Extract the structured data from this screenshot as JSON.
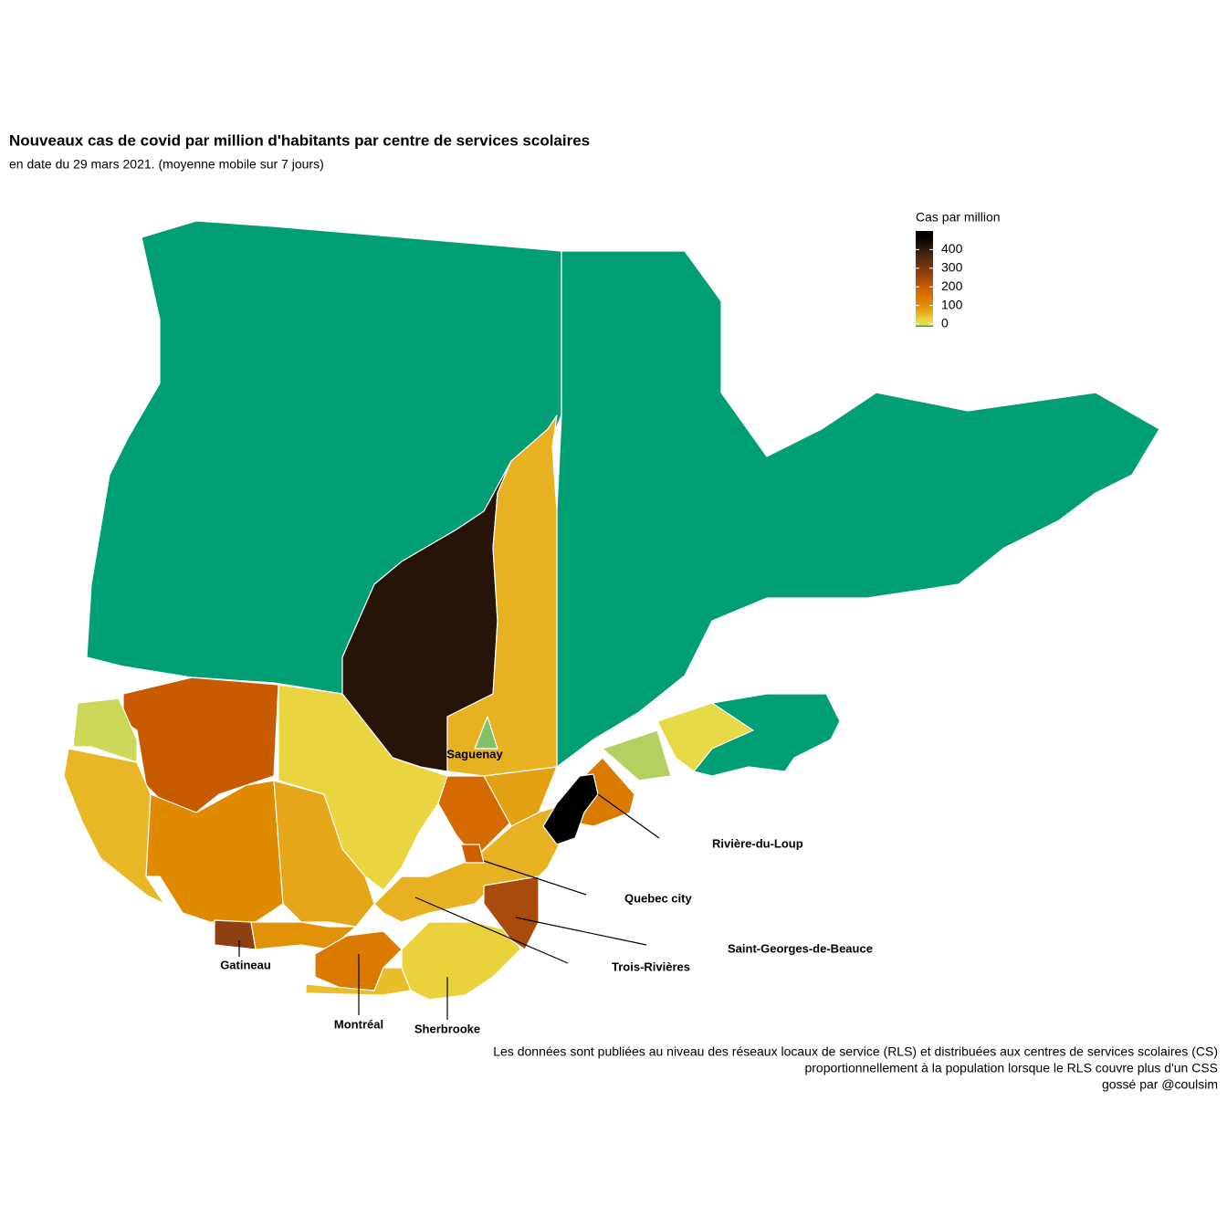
{
  "map": {
    "type": "choropleth",
    "title": "Nouveaux cas de covid par million d'habitants par centre de services scolaires",
    "subtitle": "en date du 29 mars 2021. (moyenne mobile sur 7 jours)",
    "legend": {
      "title": "Cas par million",
      "lim": [
        0,
        500
      ],
      "ticks": [
        0,
        100,
        200,
        300,
        400
      ]
    },
    "values": [
      0,
      0,
      420,
      70,
      5,
      35,
      180,
      90,
      210,
      10,
      65,
      120,
      280,
      80,
      110,
      150,
      60,
      40,
      70,
      250,
      150,
      480,
      8,
      25,
      0,
      200
    ],
    "labels": [
      "Saguenay",
      "Rivière-du-Loup",
      "Quebec city",
      "Saint-Georges-de-Beauce",
      "Trois-Rivières",
      "Gatineau",
      "Montréal",
      "Sherbrooke"
    ],
    "caption": [
      "Les données sont publiées au niveau des réseaux locaux de service (RLS) et distribuées aux centres de services scolaires (CS)",
      "proportionnellement à la population lorsque le RLS couvre plus d'un CSS",
      "gossé par @coulsim"
    ]
  }
}
